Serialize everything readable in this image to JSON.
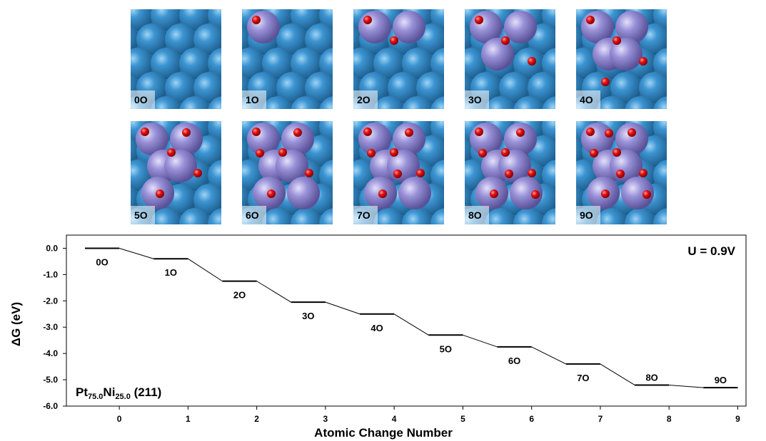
{
  "chart_data": {
    "type": "step-levels",
    "point_labels": [
      "0O",
      "1O",
      "2O",
      "3O",
      "4O",
      "5O",
      "6O",
      "7O",
      "8O",
      "9O"
    ],
    "x": [
      0,
      1,
      2,
      3,
      4,
      5,
      6,
      7,
      8,
      9
    ],
    "values": [
      0.0,
      -0.4,
      -1.25,
      -2.05,
      -2.5,
      -3.3,
      -3.75,
      -4.4,
      -5.2,
      -5.3
    ],
    "color": "#000000",
    "xlabel": "Atomic Change Number",
    "ylabel": "ΔG (eV)",
    "xlim": [
      -0.77,
      9.12
    ],
    "ylim": [
      -6,
      0.5
    ],
    "xticks": [
      0,
      1,
      2,
      3,
      4,
      5,
      6,
      7,
      8,
      9
    ],
    "yticks": [
      {
        "value": 0,
        "label": "0.0"
      },
      {
        "value": -1,
        "label": "-1.0"
      },
      {
        "value": -2,
        "label": "-2.0"
      },
      {
        "value": -3,
        "label": "-3.0"
      },
      {
        "value": -4,
        "label": "-4.0"
      },
      {
        "value": -5,
        "label": "-5.0"
      },
      {
        "value": -6,
        "label": "-6.0"
      }
    ],
    "annotation": "U = 0.9V",
    "system_label_parts": [
      "Pt",
      "75.0",
      "Ni",
      "25.0",
      " (211)"
    ]
  }
}
